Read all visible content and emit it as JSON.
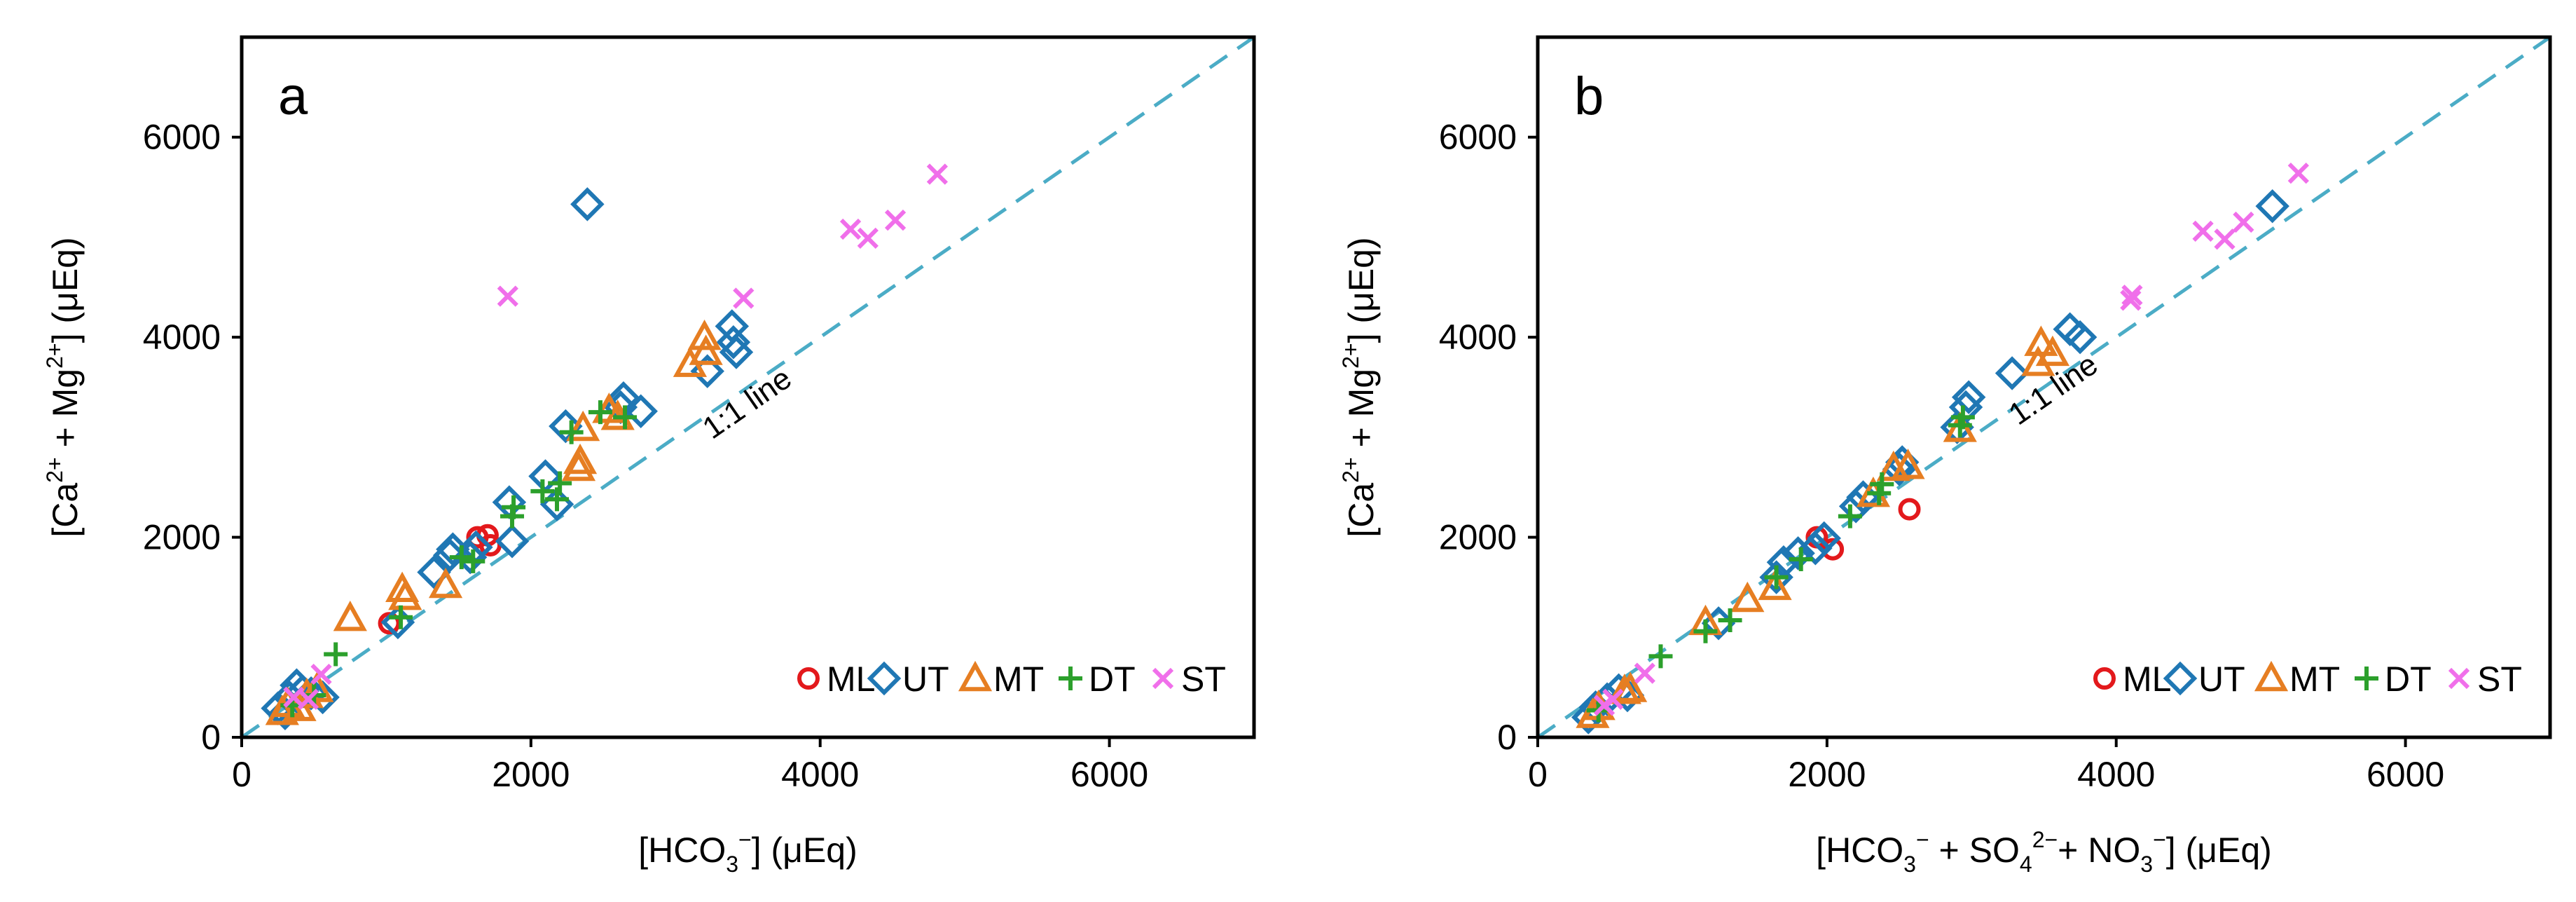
{
  "chart_data": [
    {
      "type": "scatter",
      "panel_label": "a",
      "xlabel": "[HCO3⁻] (μEq)",
      "ylabel": "[Ca²⁺ + Mg²⁺] (μEq)",
      "xlim": [
        0,
        7000
      ],
      "ylim": [
        0,
        7000
      ],
      "x_ticks": [
        0,
        2000,
        4000,
        6000
      ],
      "y_ticks": [
        0,
        2000,
        4000,
        6000
      ],
      "grid": false,
      "legend_position": "bottom-right",
      "reference_line": {
        "label": "1:1 line",
        "x": [
          0,
          7000
        ],
        "y": [
          0,
          7000
        ],
        "color": "#4bacc6"
      },
      "series": [
        {
          "name": "ML",
          "marker": "circle",
          "color": "#e3191c",
          "points": [
            [
              1020,
              1140
            ],
            [
              1630,
              2000
            ],
            [
              1700,
              2020
            ],
            [
              1720,
              1920
            ]
          ]
        },
        {
          "name": "UT",
          "marker": "diamond",
          "color": "#1f77b4",
          "points": [
            [
              250,
              290
            ],
            [
              300,
              240
            ],
            [
              330,
              400
            ],
            [
              380,
              520
            ],
            [
              420,
              460
            ],
            [
              480,
              440
            ],
            [
              560,
              400
            ],
            [
              1080,
              1150
            ],
            [
              1330,
              1650
            ],
            [
              1440,
              1820
            ],
            [
              1460,
              1880
            ],
            [
              1580,
              1800
            ],
            [
              1620,
              1900
            ],
            [
              1850,
              2350
            ],
            [
              1870,
              1960
            ],
            [
              2100,
              2610
            ],
            [
              2180,
              2330
            ],
            [
              2240,
              3110
            ],
            [
              2390,
              5330
            ],
            [
              2620,
              3300
            ],
            [
              2640,
              3390
            ],
            [
              2760,
              3260
            ],
            [
              3220,
              3660
            ],
            [
              3390,
              4110
            ],
            [
              3400,
              3950
            ],
            [
              3420,
              3850
            ]
          ]
        },
        {
          "name": "MT",
          "marker": "triangle",
          "color": "#e67e22",
          "points": [
            [
              280,
              250
            ],
            [
              320,
              330
            ],
            [
              400,
              290
            ],
            [
              450,
              420
            ],
            [
              520,
              480
            ],
            [
              750,
              1190
            ],
            [
              1110,
              1480
            ],
            [
              1130,
              1400
            ],
            [
              1410,
              1520
            ],
            [
              2330,
              2690
            ],
            [
              2340,
              2760
            ],
            [
              2360,
              3090
            ],
            [
              2540,
              3270
            ],
            [
              2600,
              3200
            ],
            [
              3100,
              3730
            ],
            [
              3200,
              4000
            ],
            [
              3210,
              3850
            ]
          ]
        },
        {
          "name": "DT",
          "marker": "plus",
          "color": "#2ca02c",
          "points": [
            [
              350,
              320
            ],
            [
              500,
              420
            ],
            [
              650,
              830
            ],
            [
              1100,
              1200
            ],
            [
              1520,
              1800
            ],
            [
              1600,
              1760
            ],
            [
              1870,
              2210
            ],
            [
              1880,
              2300
            ],
            [
              2080,
              2460
            ],
            [
              2180,
              2380
            ],
            [
              2200,
              2540
            ],
            [
              2280,
              3050
            ],
            [
              2480,
              3250
            ],
            [
              2650,
              3200
            ]
          ]
        },
        {
          "name": "ST",
          "marker": "x",
          "color": "#f06fea",
          "points": [
            [
              360,
              400
            ],
            [
              460,
              380
            ],
            [
              550,
              630
            ],
            [
              1840,
              4410
            ],
            [
              3470,
              4390
            ],
            [
              4210,
              5080
            ],
            [
              4330,
              4990
            ],
            [
              4520,
              5170
            ],
            [
              4810,
              5630
            ]
          ]
        }
      ]
    },
    {
      "type": "scatter",
      "panel_label": "b",
      "xlabel": "[HCO3⁻ + SO4²⁻+ NO3⁻] (μEq)",
      "ylabel": "[Ca²⁺ + Mg²⁺] (μEq)",
      "xlim": [
        0,
        7000
      ],
      "ylim": [
        0,
        7000
      ],
      "x_ticks": [
        0,
        2000,
        4000,
        6000
      ],
      "y_ticks": [
        0,
        2000,
        4000,
        6000
      ],
      "grid": false,
      "legend_position": "bottom-right",
      "reference_line": {
        "label": "1:1 line",
        "x": [
          0,
          7000
        ],
        "y": [
          0,
          7000
        ],
        "color": "#4bacc6"
      },
      "series": [
        {
          "name": "ML",
          "marker": "circle",
          "color": "#e3191c",
          "points": [
            [
              1930,
              2000
            ],
            [
              2040,
              1880
            ],
            [
              2570,
              2280
            ]
          ]
        },
        {
          "name": "UT",
          "marker": "diamond",
          "color": "#1f77b4",
          "points": [
            [
              350,
              200
            ],
            [
              400,
              300
            ],
            [
              480,
              380
            ],
            [
              560,
              470
            ],
            [
              620,
              420
            ],
            [
              1250,
              1140
            ],
            [
              1650,
              1600
            ],
            [
              1700,
              1750
            ],
            [
              1800,
              1840
            ],
            [
              1920,
              1890
            ],
            [
              1980,
              1990
            ],
            [
              2200,
              2310
            ],
            [
              2250,
              2400
            ],
            [
              2500,
              2680
            ],
            [
              2520,
              2750
            ],
            [
              2900,
              3100
            ],
            [
              2960,
              3300
            ],
            [
              2980,
              3400
            ],
            [
              3280,
              3640
            ],
            [
              3680,
              4080
            ],
            [
              3750,
              4000
            ],
            [
              5080,
              5310
            ]
          ]
        },
        {
          "name": "MT",
          "marker": "triangle",
          "color": "#e67e22",
          "points": [
            [
              380,
              220
            ],
            [
              420,
              300
            ],
            [
              600,
              460
            ],
            [
              640,
              480
            ],
            [
              1160,
              1150
            ],
            [
              1450,
              1380
            ],
            [
              1640,
              1500
            ],
            [
              2320,
              2430
            ],
            [
              2460,
              2690
            ],
            [
              2560,
              2710
            ],
            [
              2920,
              3080
            ],
            [
              3460,
              3740
            ],
            [
              3480,
              3940
            ],
            [
              3560,
              3840
            ]
          ]
        },
        {
          "name": "DT",
          "marker": "plus",
          "color": "#2ca02c",
          "points": [
            [
              420,
              270
            ],
            [
              850,
              810
            ],
            [
              1160,
              1060
            ],
            [
              1330,
              1170
            ],
            [
              1650,
              1600
            ],
            [
              1820,
              1780
            ],
            [
              2160,
              2210
            ],
            [
              2360,
              2440
            ],
            [
              2380,
              2530
            ],
            [
              2920,
              3120
            ],
            [
              2940,
              3200
            ]
          ]
        },
        {
          "name": "ST",
          "marker": "x",
          "color": "#f06fea",
          "points": [
            [
              460,
              320
            ],
            [
              520,
              380
            ],
            [
              740,
              640
            ],
            [
              4100,
              4370
            ],
            [
              4110,
              4420
            ],
            [
              4600,
              5060
            ],
            [
              4750,
              4980
            ],
            [
              4880,
              5150
            ],
            [
              5260,
              5640
            ]
          ]
        }
      ]
    }
  ]
}
